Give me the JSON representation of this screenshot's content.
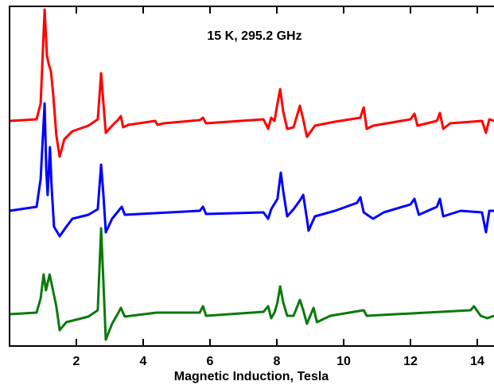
{
  "chart_data": {
    "type": "line",
    "title": "15 K, 295.2 GHz",
    "xlabel": "Magnetic Induction, Tesla",
    "xlim": [
      0,
      14.5
    ],
    "ylim": [
      0,
      427
    ],
    "xticks": [
      2,
      4,
      6,
      8,
      10,
      12,
      14
    ],
    "series": [
      {
        "color": "#ff0000",
        "x": [
          0,
          0.81,
          0.93,
          1.05,
          1.12,
          1.17,
          1.24,
          1.31,
          1.4,
          1.5,
          1.64,
          1.88,
          2.36,
          2.64,
          2.74,
          2.81,
          2.88,
          3.07,
          3.26,
          3.33,
          3.4,
          3.55,
          4.36,
          4.43,
          4.62,
          5.69,
          5.79,
          5.88,
          7.6,
          7.74,
          7.83,
          7.93,
          8.02,
          8.1,
          8.19,
          8.31,
          8.5,
          8.69,
          8.79,
          8.9,
          9.14,
          9.74,
          10.5,
          10.6,
          10.69,
          10.88,
          12,
          12.12,
          12.21,
          12.79,
          12.88,
          12.98,
          13.19,
          14.14,
          14.26,
          14.36,
          14.5
        ],
        "values": [
          283,
          285,
          305,
          423,
          365,
          355,
          345,
          315,
          265,
          238,
          260,
          270,
          277,
          285,
          343,
          305,
          268,
          277,
          285,
          289,
          275,
          278,
          283,
          278,
          280,
          284,
          287,
          280,
          285,
          273,
          287,
          283,
          305,
          323,
          295,
          273,
          275,
          302,
          285,
          263,
          277,
          282,
          287,
          300,
          273,
          277,
          285,
          292,
          277,
          283,
          293,
          273,
          280,
          283,
          268,
          285,
          283
        ]
      },
      {
        "color": "#0000ff",
        "x": [
          0,
          0.81,
          0.93,
          1.05,
          1.1,
          1.14,
          1.21,
          1.26,
          1.33,
          1.5,
          1.7,
          1.88,
          2.36,
          2.64,
          2.74,
          2.81,
          2.88,
          3.07,
          3.3,
          3.36,
          3.45,
          5.69,
          5.79,
          5.88,
          7.6,
          7.74,
          7.83,
          8.02,
          8.12,
          8.19,
          8.31,
          8.5,
          8.69,
          8.79,
          8.9,
          8.95,
          9.14,
          9.74,
          10.4,
          10.5,
          10.6,
          10.88,
          11.2,
          12,
          12.12,
          12.25,
          12.79,
          12.88,
          12.98,
          13.5,
          14.14,
          14.26,
          14.36,
          14.5
        ],
        "values": [
          170,
          175,
          210,
          305,
          220,
          190,
          250,
          200,
          150,
          138,
          150,
          160,
          165,
          172,
          228,
          190,
          143,
          160,
          172,
          175,
          165,
          170,
          175,
          166,
          168,
          160,
          172,
          185,
          218,
          195,
          163,
          172,
          183,
          190,
          160,
          145,
          163,
          170,
          180,
          187,
          168,
          160,
          168,
          178,
          185,
          165,
          175,
          185,
          163,
          170,
          168,
          143,
          170,
          170
        ]
      },
      {
        "color": "#0a7a0a",
        "x": [
          0,
          0.81,
          0.93,
          1.02,
          1.09,
          1.2,
          1.3,
          1.4,
          1.5,
          1.7,
          2.36,
          2.64,
          2.74,
          2.81,
          2.88,
          3.07,
          3.26,
          3.33,
          3.45,
          4.4,
          5.69,
          5.79,
          5.88,
          7.6,
          7.74,
          7.83,
          7.93,
          8.02,
          8.1,
          8.19,
          8.31,
          8.5,
          8.69,
          8.79,
          8.9,
          9.1,
          9.2,
          9.6,
          10.6,
          10.69,
          13.8,
          13.9,
          14.1,
          14.3,
          14.5
        ],
        "values": [
          40,
          42,
          60,
          90,
          70,
          90,
          70,
          50,
          20,
          30,
          37,
          45,
          148,
          80,
          8,
          28,
          42,
          48,
          37,
          42,
          42,
          50,
          38,
          43,
          50,
          35,
          42,
          55,
          75,
          55,
          38,
          38,
          58,
          45,
          28,
          48,
          30,
          38,
          45,
          38,
          45,
          50,
          38,
          35,
          38
        ]
      }
    ]
  }
}
